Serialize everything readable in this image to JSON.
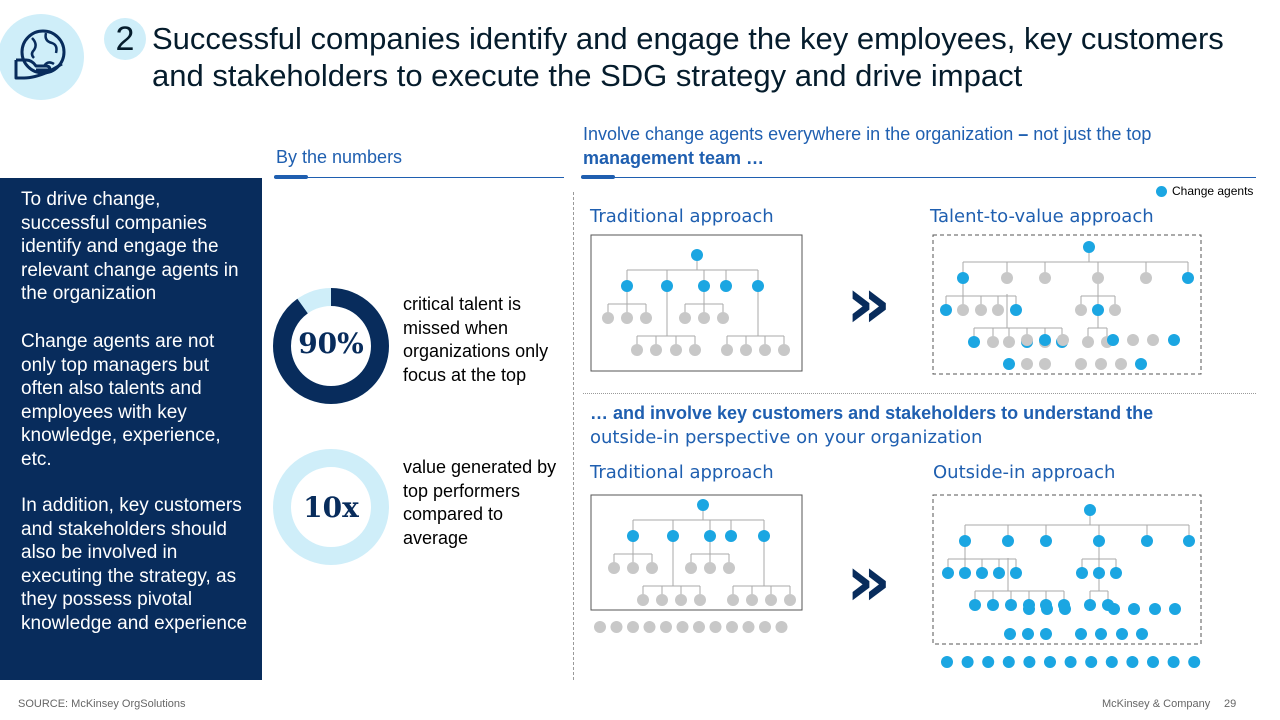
{
  "header": {
    "section_number": "2",
    "title": "Successful companies identify and engage the key employees, key customers and stakeholders to execute the SDG strategy and drive impact",
    "icon": "globe-hand-icon"
  },
  "numbers": {
    "heading": "By the numbers",
    "stats": [
      {
        "value": "90%",
        "fill_fraction": 0.9,
        "text": "critical talent is missed when organizations only focus at the top"
      },
      {
        "value": "10x",
        "fill_fraction": 1.0,
        "text": "value generated by top performers compared to average"
      }
    ]
  },
  "left_panel": {
    "paragraphs": [
      "To drive change, successful companies identify and engage the relevant change agents in the organization",
      "Change agents are not only top managers but often also talents and employees with key knowledge, experience, etc.",
      "In addition, key customers and stakeholders should also be involved in executing the strategy, as they possess pivotal knowledge and experience"
    ]
  },
  "agents": {
    "heading_normal": "Involve change agents everywhere in the organization",
    "heading_bold_1": " – ",
    "heading_normal_2": "not just the top ",
    "heading_bold_2": "management team …",
    "legend": "Change agents",
    "traditional": "Traditional approach",
    "talent": "Talent-to-value approach"
  },
  "stakeholders": {
    "heading_bold": "… and involve key customers and stakeholders to understand the",
    "heading_normal": "outside-in perspective on your organization",
    "traditional": "Traditional approach",
    "outside_in": "Outside-in approach"
  },
  "arrow_glyph": "»",
  "colors": {
    "navy": "#082c5c",
    "accent_blue": "#1f5fb0",
    "cyan": "#1ba6e2",
    "grey": "#c8c8c8",
    "light_cyan": "#cfeef9"
  },
  "footer": {
    "source": "SOURCE: McKinsey OrgSolutions",
    "brand": "McKinsey & Company",
    "page": "29"
  }
}
